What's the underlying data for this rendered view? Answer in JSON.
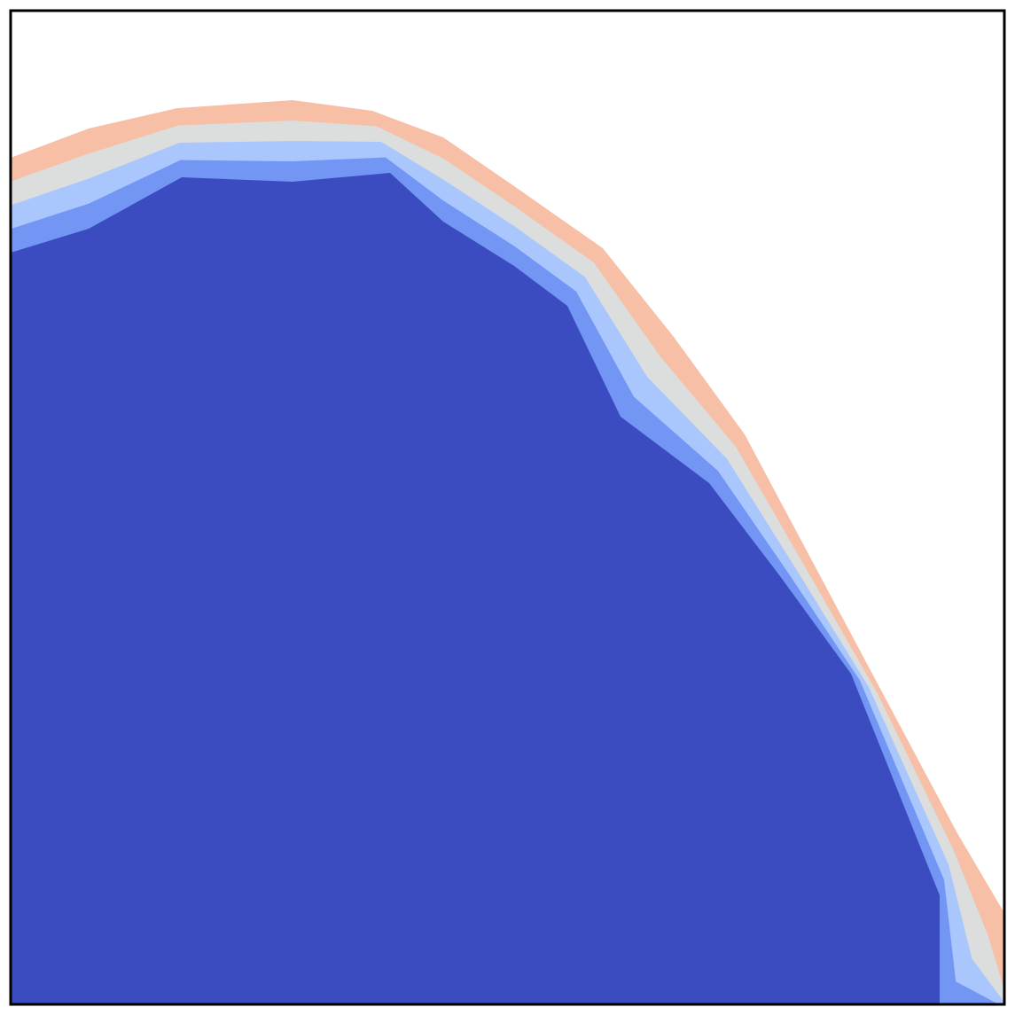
{
  "chart_data": {
    "type": "contour",
    "colors": [
      "#f6bfa6",
      "#dcdddd",
      "#aac7fd",
      "#7396f5",
      "#3b4cc0"
    ]
  }
}
